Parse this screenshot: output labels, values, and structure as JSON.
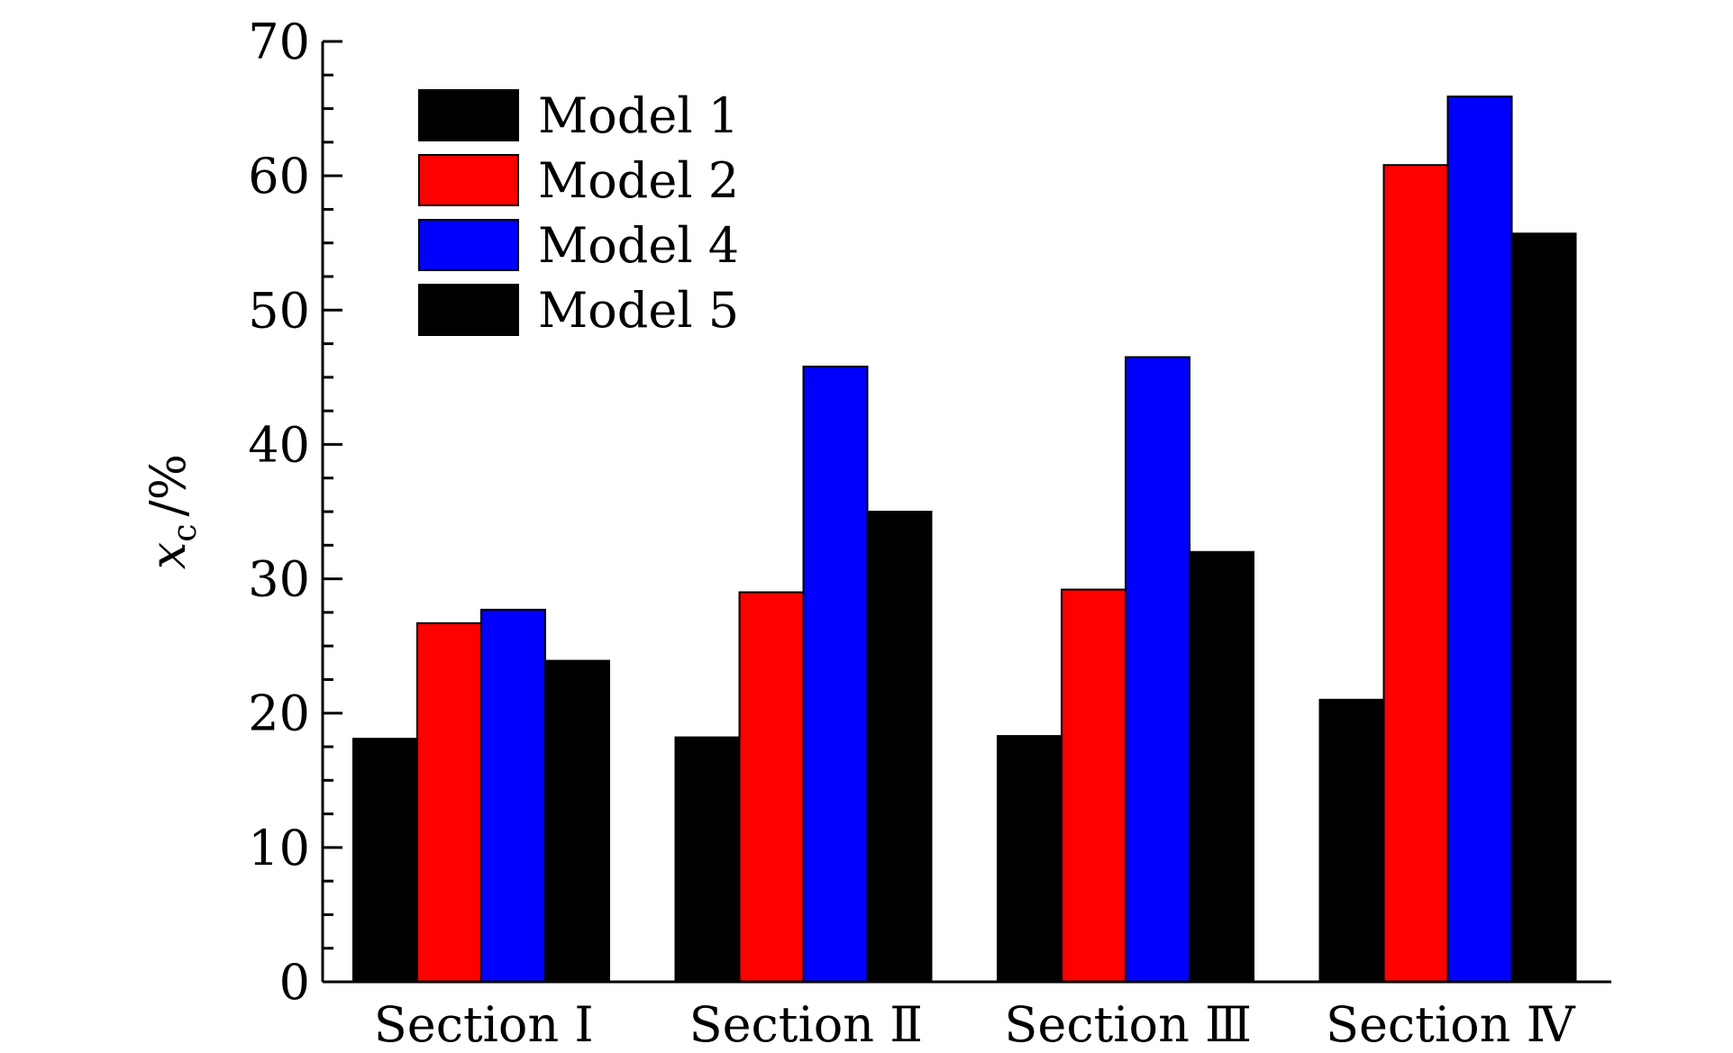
{
  "chart_data": {
    "type": "bar",
    "categories": [
      "Section Ⅰ",
      "Section Ⅱ",
      "Section Ⅲ",
      "Section Ⅳ"
    ],
    "series": [
      {
        "name": "Model 1",
        "color": "#000000",
        "values": [
          18.1,
          18.2,
          18.3,
          21.0
        ]
      },
      {
        "name": "Model 2",
        "color": "#ff0000",
        "values": [
          26.7,
          29.0,
          29.2,
          60.8
        ]
      },
      {
        "name": "Model 4",
        "color": "#0000ff",
        "values": [
          27.7,
          45.8,
          46.5,
          65.9
        ]
      },
      {
        "name": "Model 5",
        "color": "#000000",
        "values": [
          23.9,
          35.0,
          32.0,
          55.7
        ]
      }
    ],
    "ylabel": {
      "main": "x",
      "sub": "c",
      "suffix": "/%"
    },
    "xlabel": "",
    "ylim": [
      0,
      70
    ],
    "yticks": [
      0,
      10,
      20,
      30,
      40,
      50,
      60,
      70
    ],
    "ytick_labels": [
      "0",
      "10",
      "20",
      "30",
      "40",
      "50",
      "60",
      "70"
    ],
    "minor_tick_step": 2.5,
    "grid": false,
    "legend_position": "top-left"
  }
}
